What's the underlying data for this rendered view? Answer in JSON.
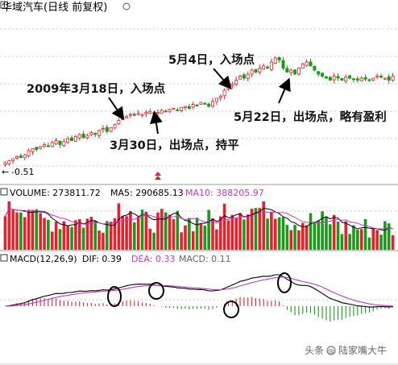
{
  "price_panel": {
    "title": "华域汽车(日线 前复权)",
    "min_label": "-0.51",
    "annotations": {
      "buy1": "2009年3月18日，入场点",
      "sell1": "3月30日，出场点，持平",
      "buy2": "5月4日，入场点",
      "sell2": "5月22日，出场点，略有盈利"
    }
  },
  "volume_panel": {
    "label": "VOLUME: 273811.72",
    "ma5": "MA5: 290685.13",
    "ma10": "MA10: 388205.97"
  },
  "macd_panel": {
    "label": "MACD(12,26,9)",
    "dif": "DIF: 0.39",
    "dea": "DEA: 0.33",
    "macd": "MACD: 0.11"
  },
  "watermark": {
    "source": "头条",
    "at": "@",
    "author": "陆家嘴大牛"
  },
  "colors": {
    "up": "#e8202a",
    "down": "#1a9a1a",
    "dif_line": "#000000",
    "dea_line": "#cc33cc",
    "ma10_label": "#cc33cc",
    "arrow": "#000000"
  },
  "chart_data": {
    "type": "candlestick",
    "series_price": {
      "x": [
        1,
        2,
        3,
        4,
        5,
        6,
        7,
        8,
        9,
        10,
        11,
        12,
        13,
        14,
        15,
        16,
        17,
        18,
        19,
        20,
        21,
        22,
        23,
        24,
        25,
        26,
        27,
        28,
        29,
        30,
        31,
        32,
        33,
        34,
        35,
        36,
        37,
        38,
        39,
        40,
        41,
        42,
        43,
        44,
        45,
        46,
        47,
        48,
        49,
        50,
        51,
        52,
        53,
        54,
        55,
        56,
        57,
        58,
        59,
        60,
        61,
        62,
        63,
        64,
        65,
        66,
        67,
        68,
        69,
        70,
        71,
        72,
        73,
        74,
        75,
        76,
        77,
        78,
        79,
        80,
        81,
        82,
        83,
        84,
        85,
        86,
        87,
        88,
        89,
        90,
        91,
        92,
        93,
        94,
        95,
        96,
        97,
        98,
        99,
        100
      ],
      "close": [
        3.2,
        3.3,
        3.4,
        3.5,
        3.45,
        3.6,
        3.8,
        3.9,
        3.85,
        4.0,
        4.1,
        4.05,
        4.2,
        4.3,
        4.1,
        4.25,
        4.4,
        4.3,
        4.5,
        4.6,
        4.45,
        4.55,
        4.7,
        4.6,
        4.8,
        4.9,
        4.75,
        4.95,
        5.1,
        5.3,
        5.4,
        5.5,
        5.6,
        5.55,
        5.65,
        5.6,
        5.7,
        5.75,
        5.65,
        5.7,
        5.8,
        5.75,
        5.85,
        5.9,
        5.8,
        5.95,
        6.0,
        5.9,
        6.1,
        6.05,
        6.2,
        6.1,
        6.0,
        6.25,
        6.4,
        6.5,
        6.8,
        7.0,
        7.1,
        7.3,
        7.5,
        7.4,
        7.6,
        7.8,
        7.7,
        7.9,
        8.0,
        7.9,
        8.2,
        8.4,
        8.3,
        7.9,
        7.7,
        7.8,
        7.6,
        7.9,
        8.1,
        8.2,
        8.0,
        7.8,
        7.6,
        7.5,
        7.4,
        7.3,
        7.5,
        7.4,
        7.3,
        7.45,
        7.4,
        7.35,
        7.3,
        7.4,
        7.35,
        7.3,
        7.4,
        7.5,
        7.45,
        7.4,
        7.3,
        7.5
      ]
    },
    "series_volume": {
      "ma5": 290685.13,
      "ma10": 388205.97,
      "volume": 273811.72
    },
    "series_macd": {
      "dif": 0.39,
      "dea": 0.33,
      "macd": 0.11
    }
  }
}
